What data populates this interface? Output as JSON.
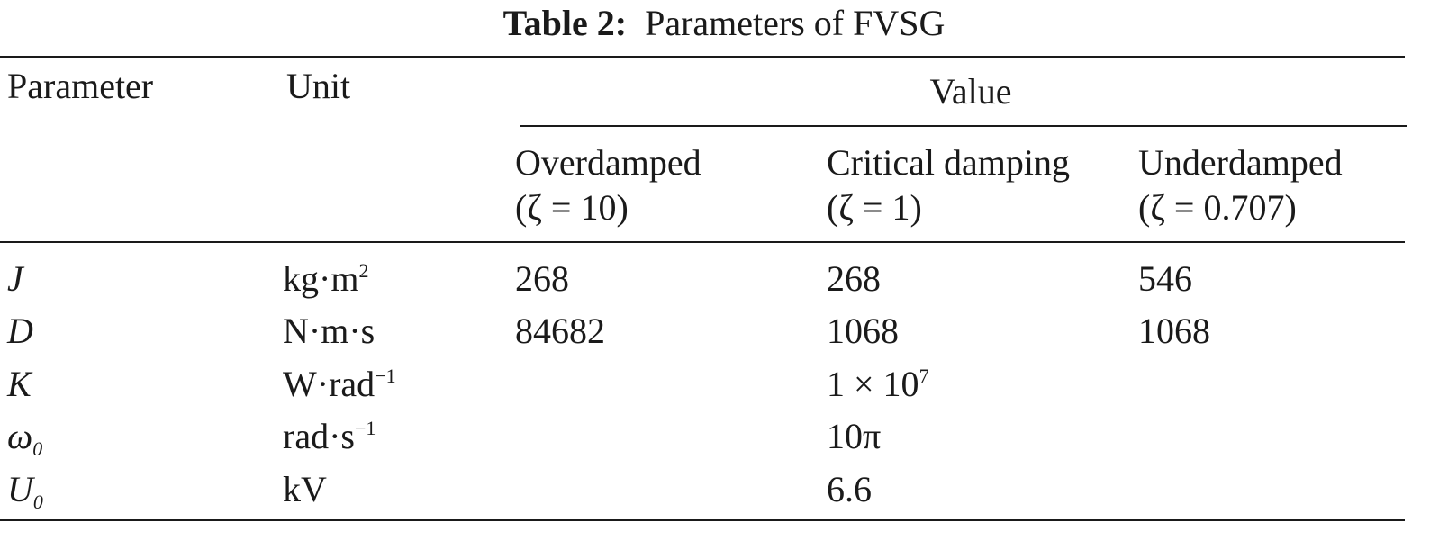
{
  "caption": {
    "label": "Table 2:",
    "text": "Parameters of FVSG"
  },
  "header": {
    "parameter": "Parameter",
    "unit": "Unit",
    "value": "Value",
    "cases": [
      {
        "name": "Overdamped",
        "condition": "(ζ = 10)"
      },
      {
        "name": "Critical damping",
        "condition": "(ζ = 1)"
      },
      {
        "name": "Underdamped",
        "condition": "(ζ = 0.707)"
      }
    ]
  },
  "rows": [
    {
      "symbol": "J",
      "symbol_sub": "",
      "unit": "kg·m",
      "unit_sup": "2",
      "overdamped": "268",
      "critical": "268",
      "critical_sup": "",
      "underdamped": "546"
    },
    {
      "symbol": "D",
      "symbol_sub": "",
      "unit": "N·m·s",
      "unit_sup": "",
      "overdamped": "84682",
      "critical": "1068",
      "critical_sup": "",
      "underdamped": "1068"
    },
    {
      "symbol": "K",
      "symbol_sub": "",
      "unit": "W·rad",
      "unit_sup": "−1",
      "overdamped": "",
      "critical": "1 × 10",
      "critical_sup": "7",
      "underdamped": ""
    },
    {
      "symbol": "ω",
      "symbol_sub": "0",
      "unit": "rad·s",
      "unit_sup": "−1",
      "overdamped": "",
      "critical": "10π",
      "critical_sup": "",
      "underdamped": ""
    },
    {
      "symbol": "U",
      "symbol_sub": "0",
      "unit": "kV",
      "unit_sup": "",
      "overdamped": "",
      "critical": "6.6",
      "critical_sup": "",
      "underdamped": ""
    }
  ]
}
